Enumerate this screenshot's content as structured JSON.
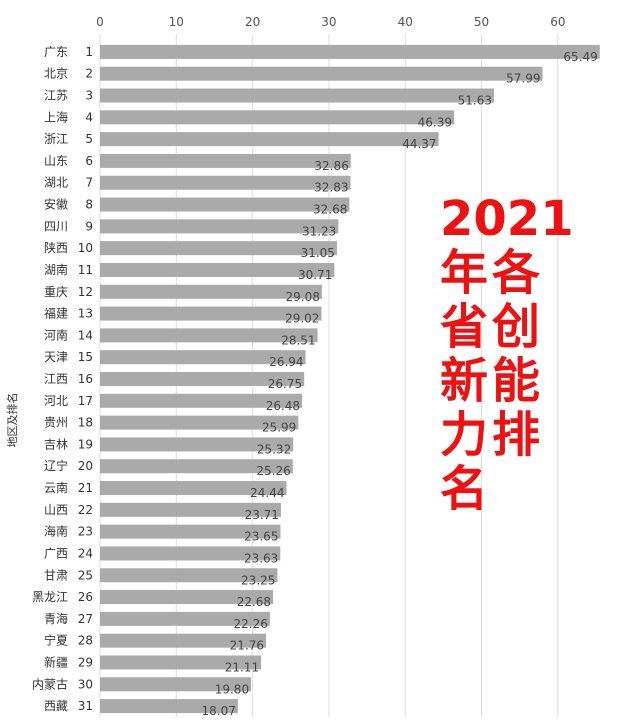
{
  "chart_data": {
    "type": "bar",
    "orientation": "horizontal",
    "ylabel": "地区及排名",
    "xlim": [
      0,
      65
    ],
    "xticks": [
      0,
      10,
      20,
      30,
      40,
      50,
      60
    ],
    "grid": true,
    "bar_color": "#aaaaaa",
    "categories": [
      "广东",
      "北京",
      "江苏",
      "上海",
      "浙江",
      "山东",
      "湖北",
      "安徽",
      "四川",
      "陕西",
      "湖南",
      "重庆",
      "福建",
      "河南",
      "天津",
      "江西",
      "河北",
      "贵州",
      "吉林",
      "辽宁",
      "云南",
      "山西",
      "海南",
      "广西",
      "甘肃",
      "黑龙江",
      "青海",
      "宁夏",
      "新疆",
      "内蒙古",
      "西藏"
    ],
    "ranks": [
      "1",
      "2",
      "3",
      "4",
      "5",
      "6",
      "7",
      "8",
      "9",
      "10",
      "11",
      "12",
      "13",
      "14",
      "15",
      "16",
      "17",
      "18",
      "19",
      "20",
      "21",
      "22",
      "23",
      "24",
      "25",
      "26",
      "27",
      "28",
      "29",
      "30",
      "31"
    ],
    "values": [
      65.49,
      57.99,
      51.63,
      46.39,
      44.37,
      32.86,
      32.83,
      32.68,
      31.23,
      31.05,
      30.71,
      29.08,
      29.02,
      28.51,
      26.94,
      26.75,
      26.48,
      25.99,
      25.32,
      25.26,
      24.44,
      23.71,
      23.65,
      23.63,
      23.25,
      22.68,
      22.26,
      21.76,
      21.11,
      19.8,
      18.07
    ],
    "value_labels": [
      "65.49",
      "57.99",
      "51.63",
      "46.39",
      "44.37",
      "32.86",
      "32.83",
      "32.68",
      "31.23",
      "31.05",
      "30.71",
      "29.08",
      "29.02",
      "28.51",
      "26.94",
      "26.75",
      "26.48",
      "25.99",
      "25.32",
      "25.26",
      "24.44",
      "23.71",
      "23.65",
      "23.63",
      "23.25",
      "22.68",
      "22.26",
      "21.76",
      "21.11",
      "19.80",
      "18.07"
    ]
  },
  "overlay": {
    "year": "2021",
    "text": "年各省创新能力排名",
    "color": "#ee1111"
  }
}
